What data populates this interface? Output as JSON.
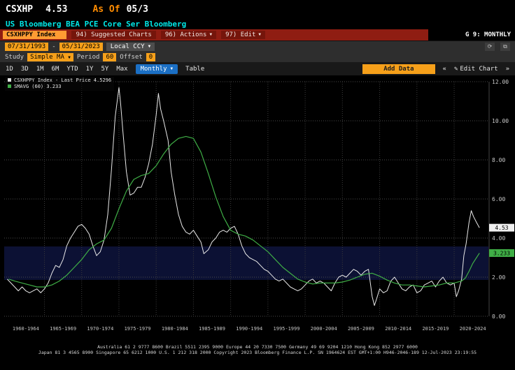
{
  "titlebar": {
    "ticker": "CSXHP",
    "price": "4.53",
    "as_of_label": "As Of",
    "as_of_date": "05/3"
  },
  "security_line": {
    "name": "US Bloomberg BEA PCE Core Ser Bloomberg"
  },
  "function_bar": {
    "security_input": "CSXHPPY Index",
    "suggested_charts": "94) Suggested Charts",
    "actions": "96) Actions",
    "edit": "97) Edit",
    "mode_label": "G 9: MONTHLY"
  },
  "controls": {
    "date_from": "07/31/1993",
    "date_sep": "-",
    "date_to": "05/31/2023",
    "currency": "Local CCY",
    "study_label": "Study",
    "study_value": "Simple MA",
    "period_label": "Period",
    "period_value": "60",
    "offset_label": "Offset",
    "offset_value": "0"
  },
  "toolbar": {
    "ranges": [
      "1D",
      "3D",
      "1M",
      "6M",
      "YTD",
      "1Y",
      "5Y",
      "Max"
    ],
    "frequency": "Monthly",
    "table_label": "Table",
    "add_data": "Add Data",
    "edit_chart": "Edit Chart"
  },
  "icons": {
    "chevron_down": "▼",
    "refresh": "⟳",
    "popout": "⧉",
    "pencil": "✎",
    "prev": "«",
    "next": "»"
  },
  "legend": {
    "items": [
      {
        "label": "CSXHPPY Index - Last Price",
        "value": "4.5296"
      },
      {
        "label": "SMAVG (60)",
        "value": "3.233"
      }
    ]
  },
  "markers": [
    {
      "label": "4.53",
      "value": 4.53,
      "bg": "#f0f0f0",
      "fg": "#000000"
    },
    {
      "label": "3.233",
      "value": 3.233,
      "bg": "#3fae46",
      "fg": "#000000"
    }
  ],
  "colors": {
    "accent_orange": "#f6a01a",
    "security_orange": "#ff9c33",
    "bar_red": "#8f1d12",
    "frequency_blue": "#1b6fc4",
    "security_cyan": "#00e8e8",
    "price_line": "#e8e8e8",
    "sma_line": "#3fae46",
    "band": "#0c1134"
  },
  "chart_data": {
    "type": "line",
    "title": "CSXHPPY Index monthly with 60-period simple moving average",
    "ylim": [
      0,
      12
    ],
    "ytick_step": 2,
    "x_range": [
      1959.6,
      2024.6
    ],
    "grid_years": [
      1965,
      1970,
      1975,
      1980,
      1985,
      1990,
      1995,
      2000,
      2005,
      2010,
      2015,
      2020
    ],
    "x_categories": [
      "1960-1964",
      "1965-1969",
      "1970-1974",
      "1975-1979",
      "1980-1984",
      "1985-1989",
      "1990-1994",
      "1995-1999",
      "2000-2004",
      "2005-2009",
      "2010-2014",
      "2015-2019",
      "2020-2024"
    ],
    "band": {
      "from": 1.86,
      "to": 3.57
    },
    "series": [
      {
        "name": "CSXHPPY Index - Last Price",
        "color": "#e8e8e8",
        "width": 1,
        "points": [
          [
            1960,
            1.9
          ],
          [
            1960.5,
            1.7
          ],
          [
            1961,
            1.5
          ],
          [
            1961.5,
            1.3
          ],
          [
            1962,
            1.5
          ],
          [
            1962.5,
            1.3
          ],
          [
            1963,
            1.2
          ],
          [
            1963.5,
            1.3
          ],
          [
            1964,
            1.4
          ],
          [
            1964.5,
            1.2
          ],
          [
            1965,
            1.4
          ],
          [
            1965.5,
            1.7
          ],
          [
            1966,
            2.2
          ],
          [
            1966.5,
            2.6
          ],
          [
            1967,
            2.5
          ],
          [
            1967.5,
            2.9
          ],
          [
            1968,
            3.6
          ],
          [
            1968.5,
            4.0
          ],
          [
            1969,
            4.3
          ],
          [
            1969.5,
            4.6
          ],
          [
            1970,
            4.7
          ],
          [
            1970.5,
            4.5
          ],
          [
            1971,
            4.2
          ],
          [
            1971.5,
            3.6
          ],
          [
            1972,
            3.1
          ],
          [
            1972.5,
            3.3
          ],
          [
            1973,
            3.9
          ],
          [
            1973.5,
            5.2
          ],
          [
            1974,
            7.5
          ],
          [
            1974.5,
            10.2
          ],
          [
            1975,
            11.7
          ],
          [
            1975.2,
            11.0
          ],
          [
            1975.5,
            9.6
          ],
          [
            1976,
            7.4
          ],
          [
            1976.5,
            6.2
          ],
          [
            1977,
            6.3
          ],
          [
            1977.5,
            6.6
          ],
          [
            1978,
            6.6
          ],
          [
            1978.5,
            7.1
          ],
          [
            1979,
            7.8
          ],
          [
            1979.5,
            8.8
          ],
          [
            1980,
            10.3
          ],
          [
            1980.3,
            11.4
          ],
          [
            1980.6,
            10.6
          ],
          [
            1981,
            10.0
          ],
          [
            1981.3,
            9.5
          ],
          [
            1981.6,
            9.0
          ],
          [
            1982,
            7.4
          ],
          [
            1982.5,
            6.2
          ],
          [
            1983,
            5.2
          ],
          [
            1983.5,
            4.6
          ],
          [
            1984,
            4.3
          ],
          [
            1984.5,
            4.2
          ],
          [
            1985,
            4.4
          ],
          [
            1985.5,
            4.1
          ],
          [
            1986,
            3.8
          ],
          [
            1986.4,
            3.2
          ],
          [
            1987,
            3.4
          ],
          [
            1987.5,
            3.8
          ],
          [
            1988,
            4.0
          ],
          [
            1988.5,
            4.3
          ],
          [
            1989,
            4.4
          ],
          [
            1989.5,
            4.3
          ],
          [
            1990,
            4.5
          ],
          [
            1990.5,
            4.6
          ],
          [
            1991,
            4.2
          ],
          [
            1991.5,
            3.6
          ],
          [
            1992,
            3.2
          ],
          [
            1992.5,
            3.0
          ],
          [
            1993,
            2.9
          ],
          [
            1993.5,
            2.8
          ],
          [
            1994,
            2.6
          ],
          [
            1994.5,
            2.4
          ],
          [
            1995,
            2.3
          ],
          [
            1995.5,
            2.1
          ],
          [
            1996,
            1.9
          ],
          [
            1996.5,
            1.8
          ],
          [
            1997,
            1.9
          ],
          [
            1997.5,
            1.7
          ],
          [
            1998,
            1.5
          ],
          [
            1998.5,
            1.4
          ],
          [
            1999,
            1.3
          ],
          [
            1999.5,
            1.4
          ],
          [
            2000,
            1.6
          ],
          [
            2000.5,
            1.8
          ],
          [
            2001,
            1.9
          ],
          [
            2001.5,
            1.7
          ],
          [
            2002,
            1.8
          ],
          [
            2002.5,
            1.7
          ],
          [
            2003,
            1.5
          ],
          [
            2003.5,
            1.3
          ],
          [
            2004,
            1.7
          ],
          [
            2004.5,
            2.0
          ],
          [
            2005,
            2.1
          ],
          [
            2005.5,
            2.0
          ],
          [
            2006,
            2.2
          ],
          [
            2006.5,
            2.4
          ],
          [
            2007,
            2.3
          ],
          [
            2007.5,
            2.1
          ],
          [
            2008,
            2.3
          ],
          [
            2008.5,
            2.4
          ],
          [
            2009,
            1.0
          ],
          [
            2009.3,
            0.55
          ],
          [
            2009.6,
            0.9
          ],
          [
            2010,
            1.4
          ],
          [
            2010.5,
            1.2
          ],
          [
            2011,
            1.3
          ],
          [
            2011.5,
            1.8
          ],
          [
            2012,
            2.0
          ],
          [
            2012.5,
            1.7
          ],
          [
            2013,
            1.4
          ],
          [
            2013.5,
            1.3
          ],
          [
            2014,
            1.5
          ],
          [
            2014.5,
            1.6
          ],
          [
            2015,
            1.2
          ],
          [
            2015.5,
            1.3
          ],
          [
            2016,
            1.6
          ],
          [
            2016.5,
            1.7
          ],
          [
            2017,
            1.8
          ],
          [
            2017.5,
            1.5
          ],
          [
            2018,
            1.8
          ],
          [
            2018.5,
            2.0
          ],
          [
            2019,
            1.7
          ],
          [
            2019.5,
            1.6
          ],
          [
            2020,
            1.7
          ],
          [
            2020.3,
            1.0
          ],
          [
            2020.6,
            1.3
          ],
          [
            2021,
            1.9
          ],
          [
            2021.3,
            3.1
          ],
          [
            2021.6,
            3.7
          ],
          [
            2022,
            4.8
          ],
          [
            2022.3,
            5.4
          ],
          [
            2022.6,
            5.1
          ],
          [
            2023,
            4.8
          ],
          [
            2023.4,
            4.53
          ]
        ]
      },
      {
        "name": "SMAVG (60)",
        "color": "#3fae46",
        "width": 1.2,
        "points": [
          [
            1960.2,
            1.9
          ],
          [
            1961,
            1.8
          ],
          [
            1962,
            1.7
          ],
          [
            1963,
            1.6
          ],
          [
            1964,
            1.5
          ],
          [
            1965,
            1.5
          ],
          [
            1966,
            1.6
          ],
          [
            1967,
            1.8
          ],
          [
            1968,
            2.1
          ],
          [
            1969,
            2.5
          ],
          [
            1970,
            2.9
          ],
          [
            1971,
            3.4
          ],
          [
            1972,
            3.7
          ],
          [
            1973,
            3.9
          ],
          [
            1974,
            4.5
          ],
          [
            1975,
            5.5
          ],
          [
            1976,
            6.4
          ],
          [
            1977,
            7.0
          ],
          [
            1978,
            7.2
          ],
          [
            1979,
            7.3
          ],
          [
            1980,
            7.7
          ],
          [
            1981,
            8.3
          ],
          [
            1982,
            8.8
          ],
          [
            1983,
            9.1
          ],
          [
            1984,
            9.2
          ],
          [
            1985,
            9.1
          ],
          [
            1986,
            8.4
          ],
          [
            1987,
            7.3
          ],
          [
            1988,
            6.1
          ],
          [
            1989,
            5.1
          ],
          [
            1990,
            4.4
          ],
          [
            1991,
            4.2
          ],
          [
            1992,
            4.1
          ],
          [
            1993,
            3.9
          ],
          [
            1994,
            3.6
          ],
          [
            1995,
            3.3
          ],
          [
            1996,
            2.9
          ],
          [
            1997,
            2.5
          ],
          [
            1998,
            2.2
          ],
          [
            1999,
            1.9
          ],
          [
            2000,
            1.75
          ],
          [
            2001,
            1.65
          ],
          [
            2002,
            1.7
          ],
          [
            2003,
            1.7
          ],
          [
            2004,
            1.7
          ],
          [
            2005,
            1.75
          ],
          [
            2006,
            1.85
          ],
          [
            2007,
            2.0
          ],
          [
            2008,
            2.15
          ],
          [
            2009,
            2.2
          ],
          [
            2010,
            2.05
          ],
          [
            2011,
            1.85
          ],
          [
            2012,
            1.7
          ],
          [
            2013,
            1.6
          ],
          [
            2014,
            1.6
          ],
          [
            2015,
            1.55
          ],
          [
            2016,
            1.5
          ],
          [
            2017,
            1.55
          ],
          [
            2018,
            1.6
          ],
          [
            2019,
            1.7
          ],
          [
            2020,
            1.7
          ],
          [
            2021,
            1.8
          ],
          [
            2021.5,
            1.95
          ],
          [
            2022,
            2.3
          ],
          [
            2022.5,
            2.7
          ],
          [
            2023,
            3.0
          ],
          [
            2023.4,
            3.23
          ]
        ]
      }
    ]
  },
  "footer": {
    "line1": "Australia 61 2 9777 8600 Brazil 5511 2395 9000 Europe 44 20 7330 7500 Germany 49 69 9204 1210 Hong Kong 852 2977 6000",
    "line2": "Japan 81 3 4565 8900  Singapore 65 6212 1000  U.S. 1 212 318 2000  Copyright 2023 Bloomberg Finance L.P.  SN 1964624 EST GMT+1:00 H946-2046-189 12-Jul-2023 23:19:55"
  }
}
